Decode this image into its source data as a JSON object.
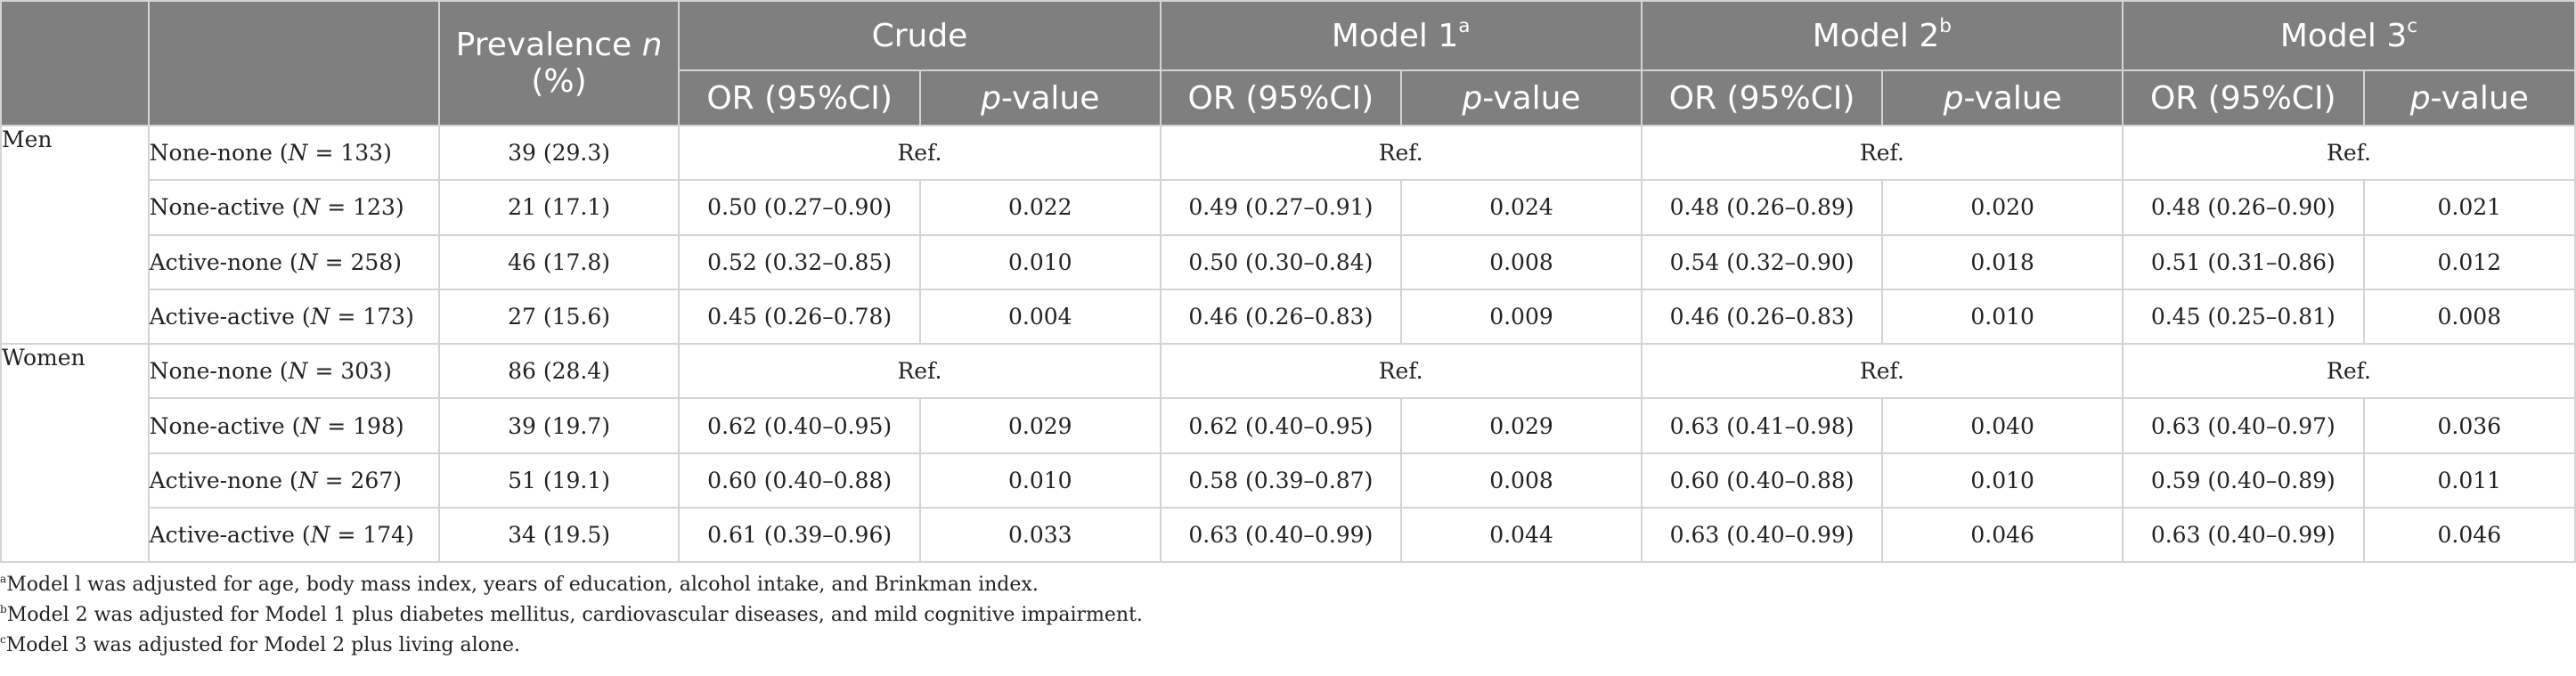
{
  "header": {
    "prevalence_line1": "Prevalence",
    "prevalence_n": "n",
    "prevalence_line2": "(%)",
    "crude": "Crude",
    "model1": "Model 1",
    "model1_sup": "a",
    "model2": "Model 2",
    "model2_sup": "b",
    "model3": "Model 3",
    "model3_sup": "c",
    "or_label": "OR (95%CI)",
    "p_italic": "p",
    "p_rest": "-value"
  },
  "rows": [
    {
      "sex": "Men",
      "group": "None-none",
      "n": "133",
      "prev": "39 (29.3)",
      "ref": "Ref."
    },
    {
      "group": "None-active",
      "n": "123",
      "prev": "21 (17.1)",
      "cells": [
        "0.50 (0.27–0.90)",
        "0.022",
        "0.49 (0.27–0.91)",
        "0.024",
        "0.48 (0.26–0.89)",
        "0.020",
        "0.48 (0.26–0.90)",
        "0.021"
      ]
    },
    {
      "group": "Active-none",
      "n": "258",
      "prev": "46 (17.8)",
      "cells": [
        "0.52 (0.32–0.85)",
        "0.010",
        "0.50 (0.30–0.84)",
        "0.008",
        "0.54 (0.32–0.90)",
        "0.018",
        "0.51 (0.31–0.86)",
        "0.012"
      ]
    },
    {
      "group": "Active-active",
      "n": "173",
      "prev": "27 (15.6)",
      "cells": [
        "0.45 (0.26–0.78)",
        "0.004",
        "0.46 (0.26–0.83)",
        "0.009",
        "0.46 (0.26–0.83)",
        "0.010",
        "0.45 (0.25–0.81)",
        "0.008"
      ]
    },
    {
      "sex": "Women",
      "group": "None-none",
      "n": "303",
      "prev": "86 (28.4)",
      "ref": "Ref."
    },
    {
      "group": "None-active",
      "n": "198",
      "prev": "39 (19.7)",
      "cells": [
        "0.62 (0.40–0.95)",
        "0.029",
        "0.62 (0.40–0.95)",
        "0.029",
        "0.63 (0.41–0.98)",
        "0.040",
        "0.63 (0.40–0.97)",
        "0.036"
      ]
    },
    {
      "group": "Active-none",
      "n": "267",
      "prev": "51 (19.1)",
      "cells": [
        "0.60 (0.40–0.88)",
        "0.010",
        "0.58 (0.39–0.87)",
        "0.008",
        "0.60 (0.40–0.88)",
        "0.010",
        "0.59 (0.40–0.89)",
        "0.011"
      ]
    },
    {
      "group": "Active-active",
      "n": "174",
      "prev": "34 (19.5)",
      "cells": [
        "0.61 (0.39–0.96)",
        "0.033",
        "0.63 (0.40–0.99)",
        "0.044",
        "0.63 (0.40–0.99)",
        "0.046",
        "0.63 (0.40–0.99)",
        "0.046"
      ]
    }
  ],
  "n_symbol": "N",
  "n_eq": " = ",
  "footnotes": [
    {
      "sup": "a",
      "text": "Model l was adjusted for age, body mass index, years of education, alcohol intake, and Brinkman index."
    },
    {
      "sup": "b",
      "text": "Model 2 was adjusted for Model 1 plus diabetes mellitus, cardiovascular diseases, and mild cognitive impairment."
    },
    {
      "sup": "c",
      "text": "Model 3 was adjusted for Model 2 plus living alone."
    }
  ]
}
